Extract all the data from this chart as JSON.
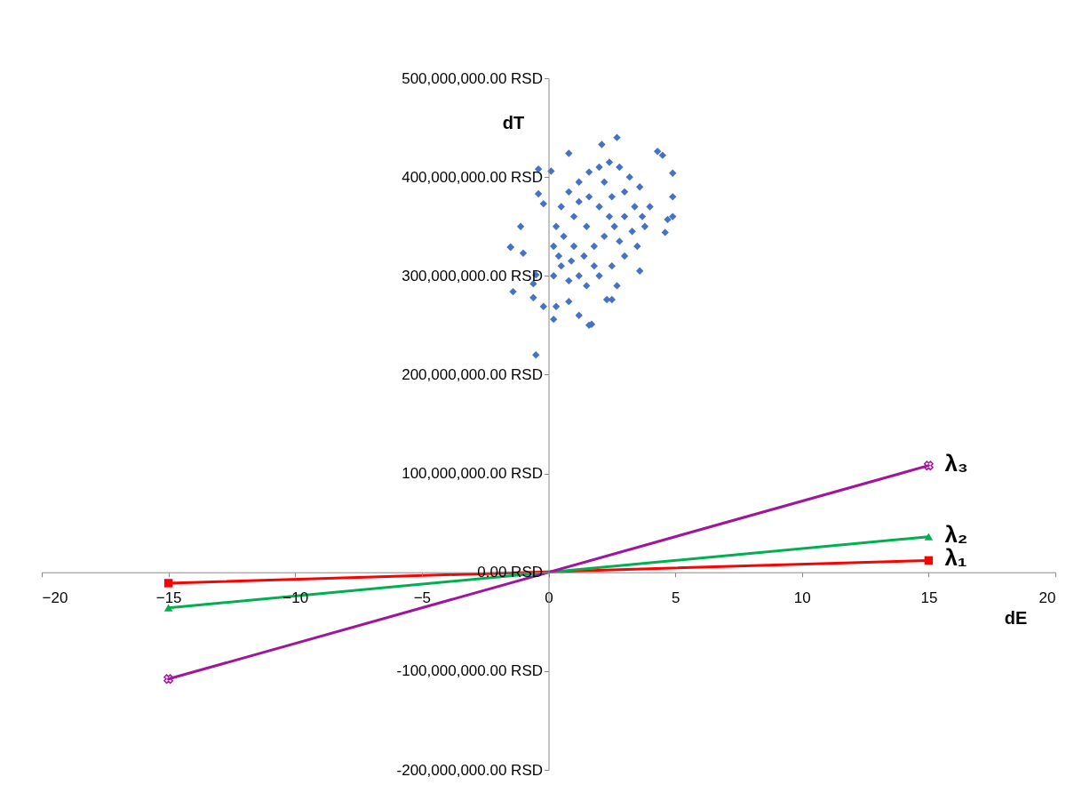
{
  "chart_data": {
    "type": "scatter",
    "xlabel": "dE",
    "ylabel": "dT",
    "xlim": [
      -20,
      20
    ],
    "xticks": [
      -20,
      -15,
      -10,
      -5,
      0,
      5,
      10,
      15,
      20
    ],
    "ylim": [
      -200000000,
      500000000
    ],
    "yticks": [
      {
        "value": -200000000,
        "label": "-200,000,000.00 RSD"
      },
      {
        "value": -100000000,
        "label": "-100,000,000.00 RSD"
      },
      {
        "value": 0,
        "label": "0.00 RSD"
      },
      {
        "value": 100000000,
        "label": "100,000,000.00 RSD"
      },
      {
        "value": 200000000,
        "label": "200,000,000.00 RSD"
      },
      {
        "value": 300000000,
        "label": "300,000,000.00 RSD"
      },
      {
        "value": 400000000,
        "label": "400,000,000.00 RSD"
      },
      {
        "value": 500000000,
        "label": "500,000,000.00 RSD"
      }
    ],
    "grid": false,
    "series": [
      {
        "color": "#4472c4",
        "marker": "diamond",
        "x": [
          -0.5,
          1.6,
          -1.4,
          -1.5,
          -0.4,
          0.1,
          2.7,
          2.1,
          0.8,
          4.3,
          4.5,
          4.9,
          4.9,
          4.7,
          4.6,
          4.9,
          -0.4,
          -0.2,
          -1.1,
          -1.5,
          -1.0,
          -0.6,
          -0.2,
          0.2,
          1.2,
          1.7,
          2.3,
          2.5,
          3.6,
          2.7,
          -0.6,
          -0.5,
          0.8,
          0.3,
          0.2,
          0.5,
          0.8,
          1.2,
          1.5,
          2.0,
          2.5,
          3.0,
          3.5,
          3.8,
          4.0,
          3.6,
          3.2,
          2.8,
          2.4,
          2.0,
          1.6,
          1.2,
          0.8,
          0.5,
          0.3,
          0.2,
          0.6,
          1.0,
          1.4,
          1.8,
          2.2,
          2.6,
          3.0,
          3.4,
          1.0,
          1.5,
          2.0,
          2.5,
          3.0,
          1.2,
          2.2,
          1.8,
          2.8,
          3.3,
          0.9,
          1.6,
          2.4,
          3.7,
          0.4
        ],
        "values": [
          220000000,
          250000000,
          284000000,
          329000000,
          408000000,
          406000000,
          440000000,
          433000000,
          424000000,
          426000000,
          422000000,
          404000000,
          380000000,
          357000000,
          344000000,
          360000000,
          383000000,
          373000000,
          350000000,
          329000000,
          323000000,
          278000000,
          269000000,
          256000000,
          260000000,
          251000000,
          276000000,
          276000000,
          305000000,
          290000000,
          292000000,
          301000000,
          274000000,
          269000000,
          300000000,
          310000000,
          295000000,
          300000000,
          290000000,
          300000000,
          310000000,
          320000000,
          330000000,
          350000000,
          370000000,
          390000000,
          400000000,
          410000000,
          415000000,
          410000000,
          405000000,
          395000000,
          385000000,
          370000000,
          350000000,
          330000000,
          340000000,
          330000000,
          320000000,
          330000000,
          340000000,
          350000000,
          360000000,
          370000000,
          360000000,
          350000000,
          370000000,
          380000000,
          385000000,
          375000000,
          395000000,
          310000000,
          335000000,
          345000000,
          315000000,
          380000000,
          360000000,
          360000000,
          320000000
        ]
      },
      {
        "type": "line",
        "name": "λ₁",
        "color": "#ff0000",
        "marker": "square",
        "x": [
          -15,
          15
        ],
        "values": [
          -11000000,
          12000000
        ]
      },
      {
        "type": "line",
        "name": "λ₂",
        "color": "#00b050",
        "marker": "triangle",
        "x": [
          -15,
          15
        ],
        "values": [
          -36000000,
          36000000
        ]
      },
      {
        "type": "line",
        "name": "λ₃",
        "color": "#a0159c",
        "marker": "cross",
        "x": [
          -15,
          15
        ],
        "values": [
          -108000000,
          108000000
        ]
      }
    ]
  }
}
